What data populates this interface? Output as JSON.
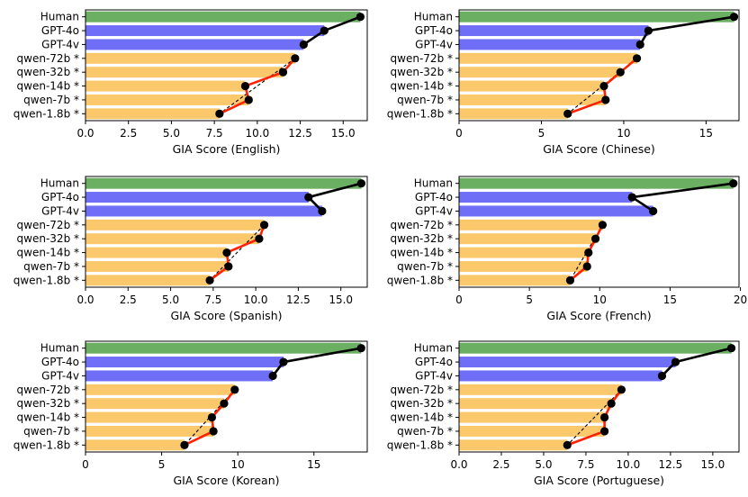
{
  "chart_data": [
    {
      "type": "bar",
      "orientation": "horizontal",
      "categories": [
        "Human",
        "GPT-4o",
        "GPT-4v",
        "qwen-72b *",
        "qwen-32b *",
        "qwen-14b *",
        "qwen-7b *",
        "qwen-1.8b *"
      ],
      "values": [
        16.0,
        13.9,
        12.7,
        12.2,
        11.5,
        9.3,
        9.5,
        7.8
      ],
      "xlabel": "GIA Score (English)",
      "xlim": [
        0,
        16.4
      ],
      "xticks": [
        0,
        2.5,
        5,
        7.5,
        10,
        12.5,
        15
      ],
      "xtick_labels": [
        "0.0",
        "2.5",
        "5.0",
        "7.5",
        "10.0",
        "12.5",
        "15.0"
      ]
    },
    {
      "type": "bar",
      "orientation": "horizontal",
      "categories": [
        "Human",
        "GPT-4o",
        "GPT-4v",
        "qwen-72b *",
        "qwen-32b *",
        "qwen-14b *",
        "qwen-7b *",
        "qwen-1.8b *"
      ],
      "values": [
        16.7,
        11.5,
        11.0,
        10.8,
        9.8,
        8.8,
        8.9,
        6.6
      ],
      "xlabel": "GIA Score (Chinese)",
      "xlim": [
        0,
        17.0
      ],
      "xticks": [
        0,
        5,
        10,
        15
      ],
      "xtick_labels": [
        "0",
        "5",
        "10",
        "15"
      ]
    },
    {
      "type": "bar",
      "orientation": "horizontal",
      "categories": [
        "Human",
        "GPT-4o",
        "GPT-4v",
        "qwen-72b *",
        "qwen-32b *",
        "qwen-14b *",
        "qwen-7b *",
        "qwen-1.8b *"
      ],
      "values": [
        16.2,
        13.1,
        13.9,
        10.5,
        10.2,
        8.3,
        8.4,
        7.3
      ],
      "xlabel": "GIA Score (Spanish)",
      "xlim": [
        0,
        16.55
      ],
      "xticks": [
        0,
        2.5,
        5,
        7.5,
        10,
        12.5,
        15
      ],
      "xtick_labels": [
        "0.0",
        "2.5",
        "5.0",
        "7.5",
        "10.0",
        "12.5",
        "15.0"
      ]
    },
    {
      "type": "bar",
      "orientation": "horizontal",
      "categories": [
        "Human",
        "GPT-4o",
        "GPT-4v",
        "qwen-72b *",
        "qwen-32b *",
        "qwen-14b *",
        "qwen-7b *",
        "qwen-1.8b *"
      ],
      "values": [
        19.5,
        12.3,
        13.8,
        10.2,
        9.7,
        9.2,
        9.1,
        7.9
      ],
      "xlabel": "GIA Score (French)",
      "xlim": [
        0,
        19.9
      ],
      "xticks": [
        0,
        5,
        10,
        15,
        20
      ],
      "xtick_labels": [
        "0",
        "5",
        "10",
        "15",
        "20"
      ]
    },
    {
      "type": "bar",
      "orientation": "horizontal",
      "categories": [
        "Human",
        "GPT-4o",
        "GPT-4v",
        "qwen-72b *",
        "qwen-32b *",
        "qwen-14b *",
        "qwen-7b *",
        "qwen-1.8b *"
      ],
      "values": [
        18.1,
        13.0,
        12.3,
        9.8,
        9.1,
        8.3,
        8.4,
        6.5
      ],
      "xlabel": "GIA Score (Korean)",
      "xlim": [
        0,
        18.5
      ],
      "xticks": [
        0,
        5,
        10,
        15
      ],
      "xtick_labels": [
        "0",
        "5",
        "10",
        "15"
      ]
    },
    {
      "type": "bar",
      "orientation": "horizontal",
      "categories": [
        "Human",
        "GPT-4o",
        "GPT-4v",
        "qwen-72b *",
        "qwen-32b *",
        "qwen-14b *",
        "qwen-7b *",
        "qwen-1.8b *"
      ],
      "values": [
        16.1,
        12.8,
        12.0,
        9.6,
        9.0,
        8.6,
        8.6,
        6.4
      ],
      "xlabel": "GIA Score (Portuguese)",
      "xlim": [
        0,
        16.55
      ],
      "xticks": [
        0,
        2.5,
        5,
        7.5,
        10,
        12.5,
        15
      ],
      "xtick_labels": [
        "0.0",
        "2.5",
        "5.0",
        "7.5",
        "10.0",
        "12.5",
        "15.0"
      ]
    }
  ],
  "colors": {
    "human_bar": "#6aaf62",
    "gpt_bar": "#6e6ef7",
    "qwen_bar": "#fbc96b",
    "gpt_line": "#000000",
    "qwen_line": "#ff2200",
    "trend_line": "#000000",
    "marker": "#000000"
  }
}
